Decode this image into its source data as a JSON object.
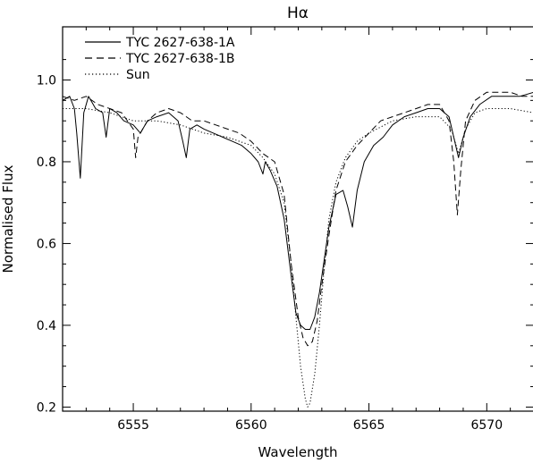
{
  "chart_data": {
    "type": "line",
    "title": "Hα",
    "xlabel": "Wavelength",
    "ylabel": "Normalised Flux",
    "xlim": [
      6552,
      6572
    ],
    "ylim": [
      0.19,
      1.13
    ],
    "xticks": [
      6555,
      6560,
      6565,
      6570
    ],
    "yticks": [
      0.2,
      0.4,
      0.6,
      0.8,
      1.0
    ],
    "xtick_labels": [
      "6555",
      "6560",
      "6565",
      "6570"
    ],
    "ytick_labels": [
      "0.2",
      "0.4",
      "0.6",
      "0.8",
      "1.0"
    ],
    "legend_position": "top-left",
    "grid": false,
    "series": [
      {
        "name": "TYC 2627-638-1A",
        "style": "solid",
        "x": [
          6552.0,
          6552.3,
          6552.5,
          6552.6,
          6552.75,
          6552.9,
          6553.1,
          6553.4,
          6553.7,
          6553.85,
          6554.0,
          6554.3,
          6554.6,
          6555.0,
          6555.3,
          6555.6,
          6556.0,
          6556.5,
          6556.9,
          6557.1,
          6557.25,
          6557.4,
          6557.7,
          6558.0,
          6558.4,
          6558.8,
          6559.2,
          6559.6,
          6560.0,
          6560.3,
          6560.5,
          6560.6,
          6560.8,
          6561.1,
          6561.4,
          6561.7,
          6561.9,
          6562.1,
          6562.3,
          6562.5,
          6562.7,
          6562.9,
          6563.1,
          6563.3,
          6563.6,
          6563.9,
          6564.1,
          6564.3,
          6564.5,
          6564.8,
          6565.2,
          6565.6,
          6566.0,
          6566.5,
          6567.0,
          6567.5,
          6568.0,
          6568.4,
          6568.6,
          6568.8,
          6569.0,
          6569.3,
          6569.7,
          6570.2,
          6570.8,
          6571.4,
          6572.0
        ],
        "y": [
          0.95,
          0.96,
          0.93,
          0.87,
          0.76,
          0.92,
          0.96,
          0.93,
          0.92,
          0.86,
          0.93,
          0.92,
          0.9,
          0.89,
          0.87,
          0.9,
          0.91,
          0.92,
          0.9,
          0.85,
          0.81,
          0.88,
          0.89,
          0.88,
          0.87,
          0.86,
          0.85,
          0.84,
          0.82,
          0.8,
          0.77,
          0.8,
          0.78,
          0.74,
          0.66,
          0.52,
          0.43,
          0.4,
          0.39,
          0.39,
          0.42,
          0.48,
          0.56,
          0.64,
          0.72,
          0.73,
          0.69,
          0.64,
          0.73,
          0.8,
          0.84,
          0.86,
          0.89,
          0.91,
          0.92,
          0.93,
          0.93,
          0.91,
          0.86,
          0.81,
          0.86,
          0.91,
          0.94,
          0.96,
          0.96,
          0.96,
          0.97
        ]
      },
      {
        "name": "TYC 2627-638-1B",
        "style": "dashed",
        "x": [
          6552.0,
          6552.5,
          6553.0,
          6553.5,
          6554.0,
          6554.5,
          6555.0,
          6555.1,
          6555.2,
          6555.6,
          6556.0,
          6556.5,
          6557.0,
          6557.5,
          6558.0,
          6558.5,
          6559.0,
          6559.5,
          6560.0,
          6560.5,
          6561.0,
          6561.4,
          6561.7,
          6562.0,
          6562.2,
          6562.4,
          6562.6,
          6562.8,
          6563.0,
          6563.3,
          6563.6,
          6564.0,
          6564.5,
          6565.0,
          6565.5,
          6566.0,
          6566.5,
          6567.0,
          6567.5,
          6568.0,
          6568.4,
          6568.6,
          6568.75,
          6568.9,
          6569.1,
          6569.5,
          6570.0,
          6570.5,
          6571.0,
          6571.5,
          6572.0
        ],
        "y": [
          0.96,
          0.95,
          0.96,
          0.94,
          0.93,
          0.92,
          0.88,
          0.81,
          0.86,
          0.9,
          0.92,
          0.93,
          0.92,
          0.9,
          0.9,
          0.89,
          0.88,
          0.87,
          0.85,
          0.82,
          0.8,
          0.72,
          0.55,
          0.42,
          0.37,
          0.35,
          0.36,
          0.41,
          0.5,
          0.62,
          0.73,
          0.8,
          0.84,
          0.87,
          0.9,
          0.91,
          0.92,
          0.93,
          0.94,
          0.94,
          0.9,
          0.8,
          0.67,
          0.78,
          0.9,
          0.95,
          0.97,
          0.97,
          0.97,
          0.96,
          0.96
        ]
      },
      {
        "name": "Sun",
        "style": "dotted",
        "x": [
          6552.0,
          6553.0,
          6554.0,
          6555.0,
          6556.0,
          6557.0,
          6558.0,
          6559.0,
          6560.0,
          6560.5,
          6561.0,
          6561.4,
          6561.7,
          6561.9,
          6562.1,
          6562.3,
          6562.4,
          6562.5,
          6562.7,
          6562.9,
          6563.1,
          6563.3,
          6563.6,
          6564.0,
          6564.5,
          6565.0,
          6566.0,
          6567.0,
          6568.0,
          6568.5,
          6568.8,
          6569.1,
          6569.5,
          6570.0,
          6571.0,
          6572.0
        ],
        "y": [
          0.93,
          0.93,
          0.92,
          0.9,
          0.9,
          0.89,
          0.87,
          0.86,
          0.84,
          0.81,
          0.77,
          0.7,
          0.55,
          0.42,
          0.3,
          0.22,
          0.2,
          0.21,
          0.28,
          0.4,
          0.54,
          0.66,
          0.75,
          0.81,
          0.85,
          0.87,
          0.9,
          0.91,
          0.91,
          0.88,
          0.82,
          0.88,
          0.92,
          0.93,
          0.93,
          0.92
        ]
      }
    ]
  }
}
